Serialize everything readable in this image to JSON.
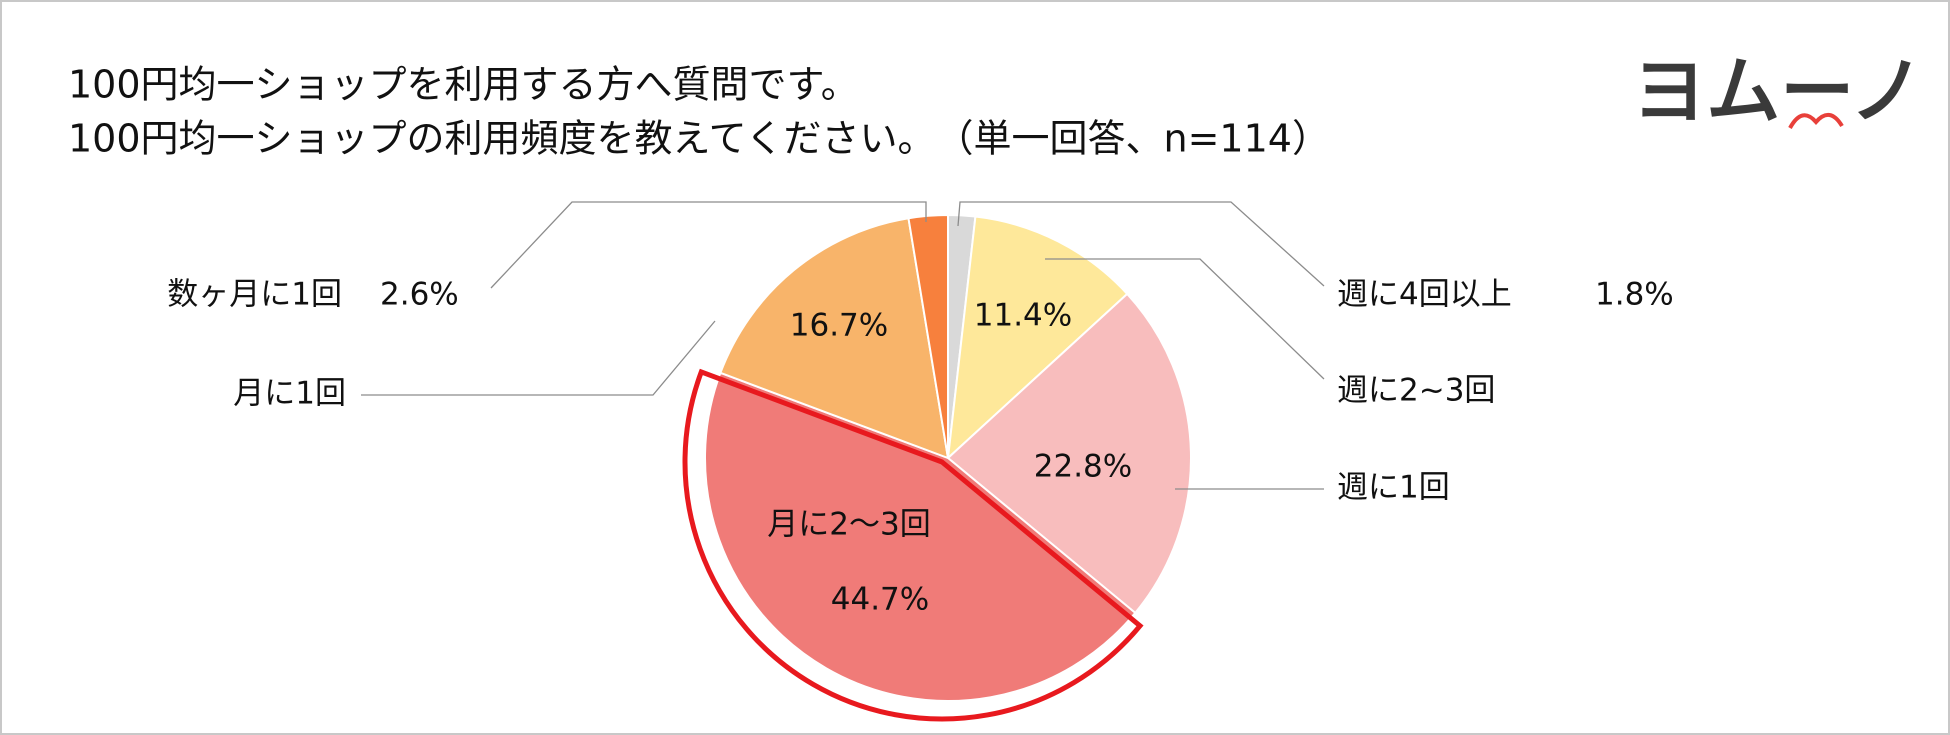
{
  "chart_data": {
    "type": "pie",
    "title_lines": [
      "100円均一ショップを利用する方へ質問です。",
      "100円均一ショップの利用頻度を教えてください。　（単一回答、n=114）"
    ],
    "logo": "ヨムーノ",
    "categories": [
      "週に4回以上",
      "週に2~3回",
      "週に1回",
      "月に2～3回",
      "月に1回",
      "数ヶ月に1回"
    ],
    "values": [
      1.8,
      11.4,
      22.8,
      44.7,
      16.7,
      2.6
    ],
    "value_labels": [
      "1.8%",
      "11.4%",
      "22.8%",
      "44.7%",
      "16.7%",
      "2.6%"
    ],
    "colors": [
      "#d9d9d9",
      "#fee89a",
      "#f8bdbd",
      "#f07b78",
      "#f8b46a",
      "#f7803d"
    ],
    "highlight": 3
  }
}
